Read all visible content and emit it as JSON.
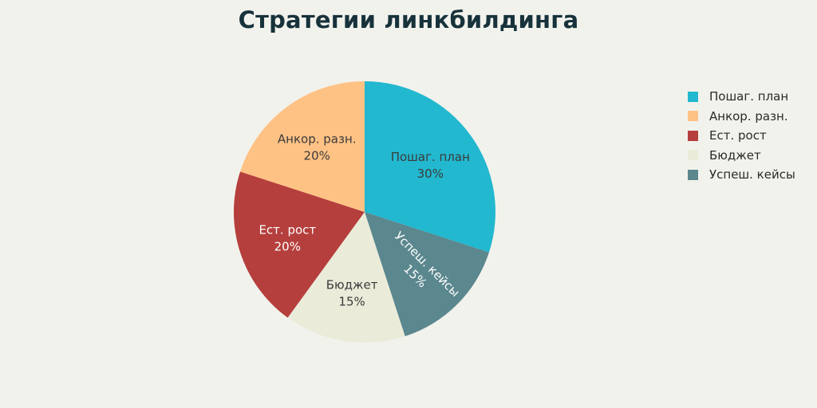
{
  "title": "Стратегии линкбилдинга",
  "chart_data": {
    "type": "pie",
    "title": "Стратегии линкбилдинга",
    "slices": [
      {
        "label": "Пошаг. план",
        "value": 30,
        "percent_label": "30%",
        "color": "#22b8cf",
        "text_color": "#3a3a3a"
      },
      {
        "label": "Успеш. кейсы",
        "value": 15,
        "percent_label": "15%",
        "color": "#5b878e",
        "text_color": "#ffffff"
      },
      {
        "label": "Бюджет",
        "value": 15,
        "percent_label": "15%",
        "color": "#ebebda",
        "text_color": "#3a3a3a"
      },
      {
        "label": "Ест. рост",
        "value": 20,
        "percent_label": "20%",
        "color": "#b53f3c",
        "text_color": "#ffffff"
      },
      {
        "label": "Анкор. разн.",
        "value": 20,
        "percent_label": "20%",
        "color": "#ffc285",
        "text_color": "#3a3a3a"
      }
    ],
    "legend": {
      "position": "right",
      "items": [
        {
          "label": "Пошаг. план",
          "color": "#22b8cf"
        },
        {
          "label": "Анкор. разн.",
          "color": "#ffc285"
        },
        {
          "label": "Ест. рост",
          "color": "#b53f3c"
        },
        {
          "label": "Бюджет",
          "color": "#ebebda"
        },
        {
          "label": "Успеш. кейсы",
          "color": "#5b878e"
        }
      ]
    }
  }
}
